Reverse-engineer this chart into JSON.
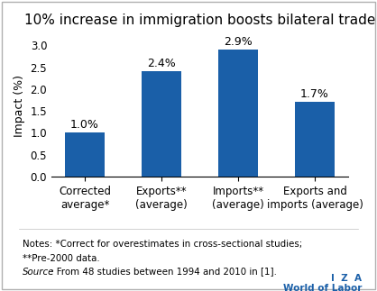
{
  "title": "10% increase in immigration boosts bilateral trade",
  "categories": [
    "Corrected\naverage*",
    "Exports**\n(average)",
    "Imports**\n(average)",
    "Exports and\nimports (average)"
  ],
  "values": [
    1.0,
    2.4,
    2.9,
    1.7
  ],
  "bar_labels": [
    "1.0%",
    "2.4%",
    "2.9%",
    "1.7%"
  ],
  "bar_color": "#1a5fa8",
  "ylabel": "Impact (%)",
  "ylim": [
    0,
    3.25
  ],
  "yticks": [
    0.0,
    0.5,
    1.0,
    1.5,
    2.0,
    2.5,
    3.0
  ],
  "title_fontsize": 11.0,
  "axis_fontsize": 9.0,
  "tick_fontsize": 8.5,
  "label_fontsize": 9.0,
  "notes_line1": "Notes: *Correct for overestimates in cross-sectional studies;",
  "notes_line2": "**Pre-2000 data.",
  "source_italic": "Source",
  "source_rest": ": From 48 studies between 1994 and 2010 in [1].",
  "iza_text": "I  Z  A",
  "wol_text": "World of Labor",
  "background_color": "#ffffff",
  "border_color": "#b0b0b0"
}
